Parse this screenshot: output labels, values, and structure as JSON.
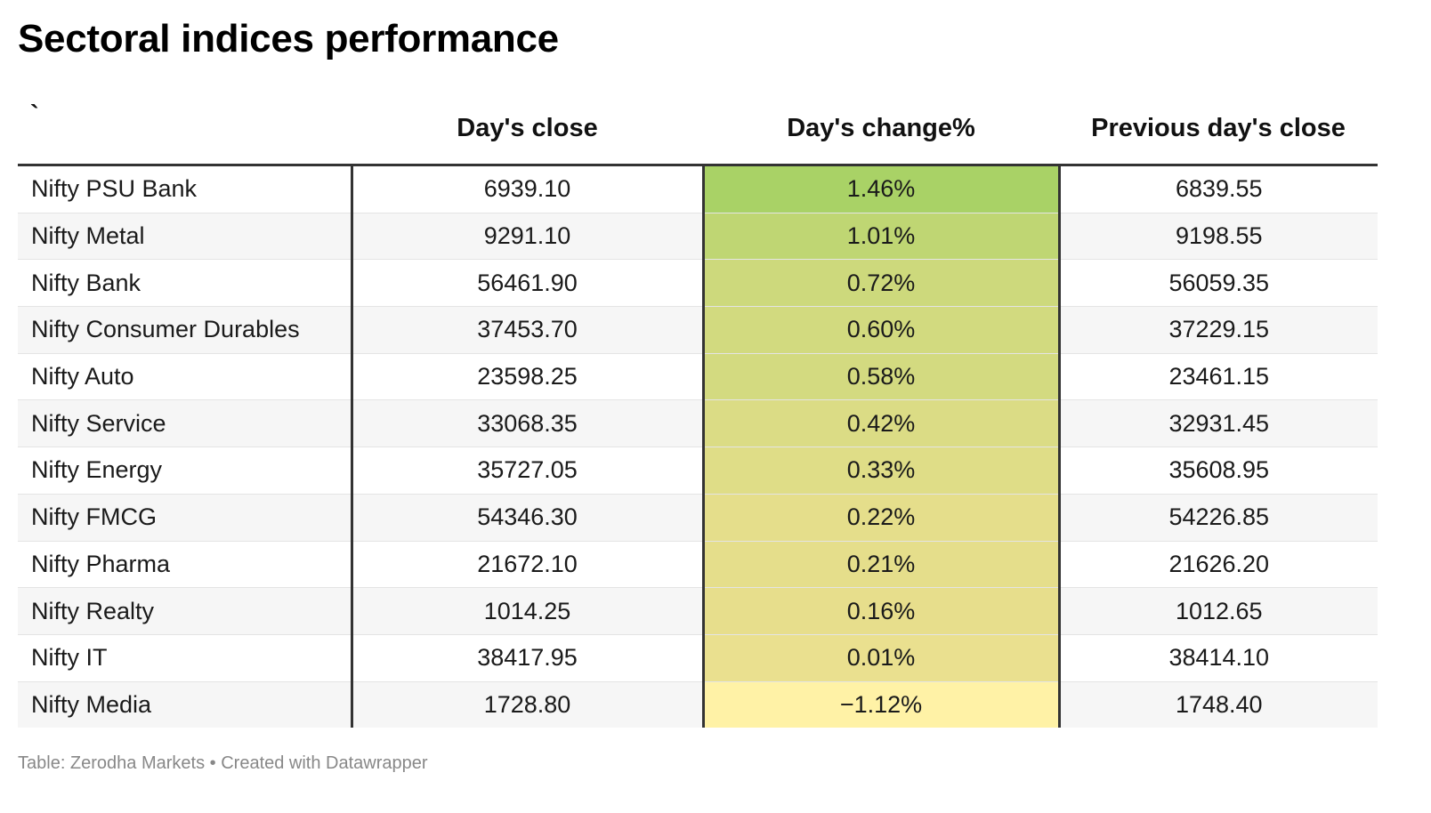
{
  "title": "Sectoral indices performance",
  "table": {
    "headers": [
      "`",
      "Day's close",
      "Day's change%",
      "Previous day's close"
    ],
    "rows": [
      {
        "name": "Nifty PSU Bank",
        "close": "6939.10",
        "change": "1.46%",
        "change_value": 1.46,
        "prev": "6839.55"
      },
      {
        "name": "Nifty Metal",
        "close": "9291.10",
        "change": "1.01%",
        "change_value": 1.01,
        "prev": "9198.55"
      },
      {
        "name": "Nifty Bank",
        "close": "56461.90",
        "change": "0.72%",
        "change_value": 0.72,
        "prev": "56059.35"
      },
      {
        "name": "Nifty Consumer Durables",
        "close": "37453.70",
        "change": "0.60%",
        "change_value": 0.6,
        "prev": "37229.15"
      },
      {
        "name": "Nifty Auto",
        "close": "23598.25",
        "change": "0.58%",
        "change_value": 0.58,
        "prev": "23461.15"
      },
      {
        "name": "Nifty Service",
        "close": "33068.35",
        "change": "0.42%",
        "change_value": 0.42,
        "prev": "32931.45"
      },
      {
        "name": "Nifty Energy",
        "close": "35727.05",
        "change": "0.33%",
        "change_value": 0.33,
        "prev": "35608.95"
      },
      {
        "name": "Nifty FMCG",
        "close": "54346.30",
        "change": "0.22%",
        "change_value": 0.22,
        "prev": "54226.85"
      },
      {
        "name": "Nifty Pharma",
        "close": "21672.10",
        "change": "0.21%",
        "change_value": 0.21,
        "prev": "21626.20"
      },
      {
        "name": "Nifty Realty",
        "close": "1014.25",
        "change": "0.16%",
        "change_value": 0.16,
        "prev": "1012.65"
      },
      {
        "name": "Nifty IT",
        "close": "38417.95",
        "change": "0.01%",
        "change_value": 0.01,
        "prev": "38414.10"
      },
      {
        "name": "Nifty Media",
        "close": "1728.80",
        "change": "−1.12%",
        "change_value": -1.12,
        "prev": "1748.40"
      }
    ]
  },
  "colors": {
    "scale_high": "#a9d266",
    "scale_mid": "#e7de8c",
    "scale_low": "#fff2a6"
  },
  "chart_data": {
    "type": "table",
    "title": "Sectoral indices performance",
    "columns": [
      "`",
      "Day's close",
      "Day's change%",
      "Previous day's close"
    ],
    "rows": [
      [
        "Nifty PSU Bank",
        6939.1,
        1.46,
        6839.55
      ],
      [
        "Nifty Metal",
        9291.1,
        1.01,
        9198.55
      ],
      [
        "Nifty Bank",
        56461.9,
        0.72,
        56059.35
      ],
      [
        "Nifty Consumer Durables",
        37453.7,
        0.6,
        37229.15
      ],
      [
        "Nifty Auto",
        23598.25,
        0.58,
        23461.15
      ],
      [
        "Nifty Service",
        33068.35,
        0.42,
        32931.45
      ],
      [
        "Nifty Energy",
        35727.05,
        0.33,
        35608.95
      ],
      [
        "Nifty FMCG",
        54346.3,
        0.22,
        54226.85
      ],
      [
        "Nifty Pharma",
        21672.1,
        0.21,
        21626.2
      ],
      [
        "Nifty Realty",
        1014.25,
        0.16,
        1012.65
      ],
      [
        "Nifty IT",
        38417.95,
        0.01,
        38414.1
      ],
      [
        "Nifty Media",
        1728.8,
        -1.12,
        1748.4
      ]
    ]
  },
  "footer": "Table: Zerodha Markets • Created with Datawrapper"
}
